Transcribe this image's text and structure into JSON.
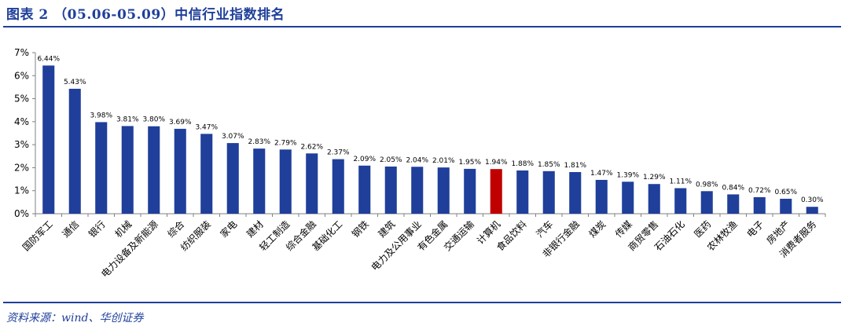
{
  "header": {
    "title": "图表 2  （05.06-05.09）中信行业指数排名"
  },
  "footer": {
    "source": "资料来源：wind、华创证券"
  },
  "colors": {
    "bar": "#1f3f9a",
    "highlight": "#c00000",
    "rule": "#1f3f9a"
  },
  "chart_data": {
    "type": "bar",
    "title": "",
    "xlabel": "",
    "ylabel": "",
    "ylim": [
      0,
      7
    ],
    "yticks": [
      "0%",
      "1%",
      "2%",
      "3%",
      "4%",
      "5%",
      "6%",
      "7%"
    ],
    "value_unit": "%",
    "grid": false,
    "highlight_category": "计算机",
    "categories": [
      "国防军工",
      "通信",
      "银行",
      "机械",
      "电力设备及新能源",
      "综合",
      "纺织服装",
      "家电",
      "建材",
      "轻工制造",
      "综合金融",
      "基础化工",
      "钢铁",
      "建筑",
      "电力及公用事业",
      "有色金属",
      "交通运输",
      "计算机",
      "食品饮料",
      "汽车",
      "非银行金融",
      "煤炭",
      "传媒",
      "商贸零售",
      "石油石化",
      "医药",
      "农林牧渔",
      "电子",
      "房地产",
      "消费者服务"
    ],
    "values": [
      6.44,
      5.43,
      3.98,
      3.81,
      3.8,
      3.69,
      3.47,
      3.07,
      2.83,
      2.79,
      2.62,
      2.37,
      2.09,
      2.05,
      2.04,
      2.01,
      1.95,
      1.94,
      1.88,
      1.85,
      1.81,
      1.47,
      1.39,
      1.29,
      1.11,
      0.98,
      0.84,
      0.72,
      0.65,
      0.3
    ],
    "data_labels": [
      "6.44%",
      "5.43%",
      "3.98%",
      "3.81%",
      "3.80%",
      "3.69%",
      "3.47%",
      "3.07%",
      "2.83%",
      "2.79%",
      "2.62%",
      "2.37%",
      "2.09%",
      "2.05%",
      "2.04%",
      "2.01%",
      "1.95%",
      "1.94%",
      "1.88%",
      "1.85%",
      "1.81%",
      "1.47%",
      "1.39%",
      "1.29%",
      "1.11%",
      "0.98%",
      "0.84%",
      "0.72%",
      "0.65%",
      "0.30%"
    ]
  }
}
